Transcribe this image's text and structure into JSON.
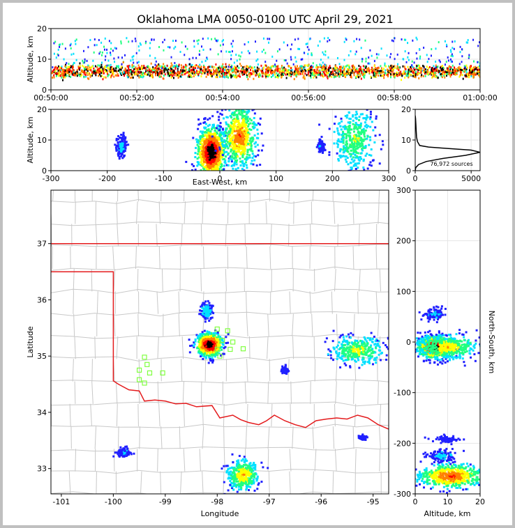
{
  "title": "Oklahoma LMA 0050-0100 UTC April 29, 2021",
  "source_count_label": "76,972 sources",
  "colors": {
    "state_border": "#e41a1c",
    "county_lines": "#c8c8c8",
    "station_marker": "#80ff40",
    "density_scale": [
      "#2020ff",
      "#00e0ff",
      "#20ff80",
      "#ffff00",
      "#ff8000",
      "#ff0000",
      "#000000"
    ]
  },
  "chart_data": [
    {
      "panel": "altitude-time",
      "type": "heatmap",
      "ylabel": "Altitude, km",
      "xlabel": "",
      "xticks": [
        "00:50:00",
        "00:52:00",
        "00:54:00",
        "00:56:00",
        "00:58:00",
        "01:00:00"
      ],
      "yticks": [
        0,
        10,
        20
      ],
      "ylim": [
        0,
        20
      ],
      "layer_altitude_km": [
        4,
        8
      ],
      "dense_altitude_km": 6
    },
    {
      "panel": "east-west-altitude",
      "type": "heatmap",
      "xlabel": "East-West, km",
      "ylabel": "Altitude, km",
      "xticks": [
        -300,
        -200,
        -100,
        0,
        100,
        200,
        300
      ],
      "yticks": [
        0,
        10,
        20
      ],
      "xlim": [
        -300,
        300
      ],
      "ylim": [
        0,
        20
      ],
      "clusters": [
        {
          "x": -15,
          "alt": 6,
          "dx": 12,
          "dalt": 4,
          "intensity": 1.0
        },
        {
          "x": 35,
          "alt": 11,
          "dx": 15,
          "dalt": 5,
          "intensity": 0.65
        },
        {
          "x": 240,
          "alt": 10,
          "dx": 18,
          "dalt": 5,
          "intensity": 0.4
        },
        {
          "x": -175,
          "alt": 8,
          "dx": 4,
          "dalt": 1.5,
          "intensity": 0.15
        },
        {
          "x": 180,
          "alt": 8,
          "dx": 3,
          "dalt": 1,
          "intensity": 0.1
        }
      ]
    },
    {
      "panel": "altitude-histogram",
      "type": "line",
      "xticks": [
        0,
        5000
      ],
      "yticks": [
        0,
        10,
        20
      ],
      "xlim": [
        0,
        5800
      ],
      "ylim": [
        0,
        20
      ],
      "x": [
        0,
        50,
        300,
        1000,
        2500,
        4500,
        5800,
        5000,
        3000,
        1200,
        400,
        200,
        120,
        90,
        60,
        30,
        0
      ],
      "y": [
        0,
        1,
        2,
        3,
        4,
        5,
        6,
        6.7,
        7.2,
        7.7,
        8.2,
        9.5,
        11,
        13,
        15,
        17,
        18
      ]
    },
    {
      "panel": "plan-view-map",
      "type": "scatter",
      "xlabel": "Longitude",
      "ylabel": "Latitude",
      "xticks": [
        -101,
        -100,
        -99,
        -98,
        -97,
        -96,
        -95
      ],
      "yticks": [
        33,
        34,
        35,
        36,
        37
      ],
      "xlim": [
        -101.2,
        -94.7
      ],
      "ylim": [
        32.55,
        37.95
      ],
      "clusters": [
        {
          "lon": -98.15,
          "lat": 35.2,
          "dx": 0.12,
          "dy": 0.1,
          "intensity": 1.0
        },
        {
          "lon": -98.2,
          "lat": 35.8,
          "dx": 0.05,
          "dy": 0.07,
          "intensity": 0.25
        },
        {
          "lon": -95.3,
          "lat": 35.1,
          "dx": 0.25,
          "dy": 0.12,
          "intensity": 0.45
        },
        {
          "lon": -97.5,
          "lat": 32.88,
          "dx": 0.15,
          "dy": 0.13,
          "intensity": 0.55
        },
        {
          "lon": -99.8,
          "lat": 33.28,
          "dx": 0.06,
          "dy": 0.04,
          "intensity": 0.12
        },
        {
          "lon": -96.7,
          "lat": 34.75,
          "dx": 0.03,
          "dy": 0.03,
          "intensity": 0.08
        },
        {
          "lon": -95.2,
          "lat": 33.55,
          "dx": 0.04,
          "dy": 0.02,
          "intensity": 0.06
        }
      ],
      "stations": [
        {
          "lon": -98.0,
          "lat": 35.48
        },
        {
          "lon": -97.8,
          "lat": 35.45
        },
        {
          "lon": -97.9,
          "lat": 35.28
        },
        {
          "lon": -97.7,
          "lat": 35.25
        },
        {
          "lon": -98.0,
          "lat": 35.12
        },
        {
          "lon": -97.75,
          "lat": 35.12
        },
        {
          "lon": -97.5,
          "lat": 35.13
        },
        {
          "lon": -97.95,
          "lat": 35.0
        },
        {
          "lon": -99.4,
          "lat": 34.98
        },
        {
          "lon": -99.35,
          "lat": 34.85
        },
        {
          "lon": -99.5,
          "lat": 34.75
        },
        {
          "lon": -99.3,
          "lat": 34.7
        },
        {
          "lon": -99.05,
          "lat": 34.7
        },
        {
          "lon": -99.5,
          "lat": 34.58
        },
        {
          "lon": -99.4,
          "lat": 34.52
        }
      ]
    },
    {
      "panel": "north-south-altitude",
      "type": "heatmap",
      "xlabel": "Altitude, km",
      "ylabel": "North-South, km",
      "xticks": [
        0,
        10,
        20
      ],
      "yticks": [
        -300,
        -200,
        -100,
        0,
        100,
        200,
        300
      ],
      "xlim": [
        0,
        20
      ],
      "ylim": [
        -300,
        300
      ],
      "clusters": [
        {
          "alt": 6,
          "ns": -10,
          "dalt": 2.5,
          "dns": 10,
          "intensity": 1.0
        },
        {
          "alt": 10,
          "ns": -10,
          "dalt": 5,
          "dns": 12,
          "intensity": 0.5
        },
        {
          "alt": 11,
          "ns": -265,
          "dalt": 5,
          "dns": 12,
          "intensity": 0.7
        },
        {
          "alt": 6,
          "ns": 55,
          "dalt": 1.5,
          "dns": 6,
          "intensity": 0.12
        },
        {
          "alt": 8,
          "ns": -225,
          "dalt": 2,
          "dns": 6,
          "intensity": 0.15
        },
        {
          "alt": 10,
          "ns": -192,
          "dalt": 2,
          "dns": 3,
          "intensity": 0.06
        }
      ]
    }
  ]
}
